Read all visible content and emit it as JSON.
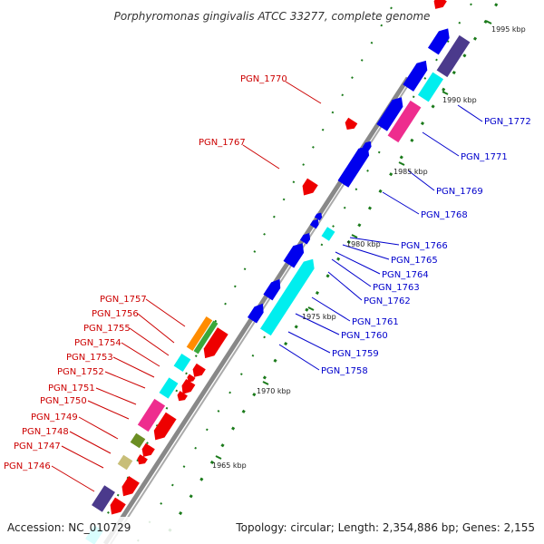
{
  "title": "Porphyromonas gingivalis ATCC 33277, complete genome",
  "accession": "Accession: NC_010729",
  "topology": "Topology: circular; Length: 2,354,886 bp; Genes: 2,155",
  "colors": {
    "backbone": "#999999",
    "left_labels": "#cc0000",
    "right_labels": "#0000cc",
    "tick_green": "#1a7a1a",
    "forward_gene": "#0000ee",
    "reverse_gene": "#ee0000",
    "cyan": "#00eeee",
    "magenta": "#ee2d8e",
    "purple": "#4b3a8c",
    "orange": "#ff8c00",
    "green": "#3aa83a",
    "olive": "#6b8e23",
    "khaki": "#c8be78"
  },
  "kbp_marks": [
    "1965 kbp",
    "1970 kbp",
    "1975 kbp",
    "1980 kbp",
    "1985 kbp",
    "1990 kbp",
    "1995 kbp"
  ],
  "left_labels": [
    "PGN_1770",
    "PGN_1767",
    "PGN_1757",
    "PGN_1756",
    "PGN_1755",
    "PGN_1754",
    "PGN_1753",
    "PGN_1752",
    "PGN_1751",
    "PGN_1750",
    "PGN_1749",
    "PGN_1748",
    "PGN_1747",
    "PGN_1746"
  ],
  "right_labels": [
    "PGN_1772",
    "PGN_1771",
    "PGN_1769",
    "PGN_1768",
    "PGN_1766",
    "PGN_1765",
    "PGN_1764",
    "PGN_1763",
    "PGN_1762",
    "PGN_1761",
    "PGN_1760",
    "PGN_1759",
    "PGN_1758"
  ]
}
